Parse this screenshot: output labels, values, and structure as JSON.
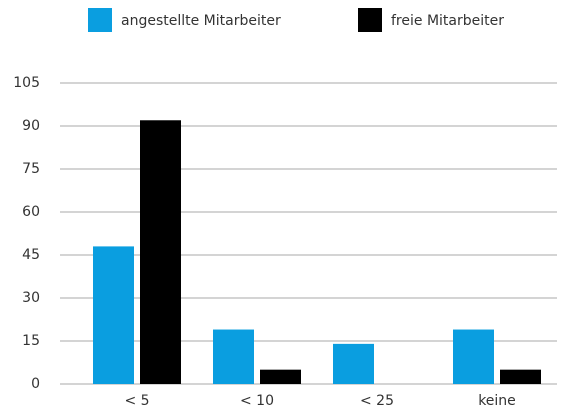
{
  "chart_data": {
    "type": "bar",
    "categories": [
      "< 5",
      "< 10",
      "< 25",
      "keine"
    ],
    "series": [
      {
        "name": "angestellte Mitarbeiter",
        "color": "#0a9ee0",
        "values": [
          48,
          19,
          14,
          19
        ]
      },
      {
        "name": "freie Mitarbeiter",
        "color": "#000000",
        "values": [
          92,
          5,
          0,
          5
        ]
      }
    ],
    "ylim": [
      0,
      105
    ],
    "yticks": [
      0,
      15,
      30,
      45,
      60,
      75,
      90,
      105
    ],
    "grid": true,
    "legend": "top"
  }
}
